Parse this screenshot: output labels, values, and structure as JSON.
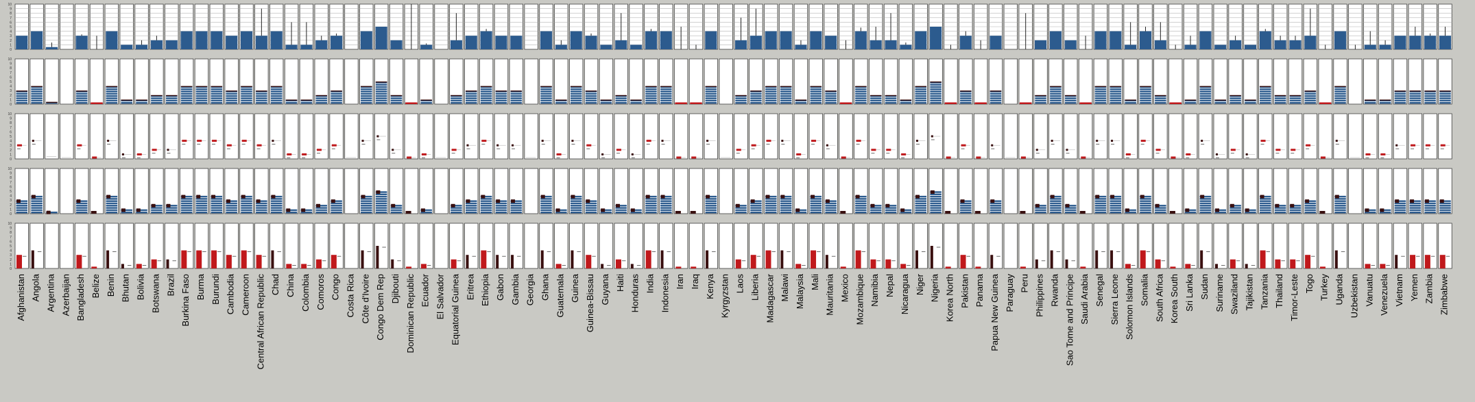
{
  "chart_data": {
    "type": "bar",
    "rows": 5,
    "ylim": [
      0,
      10
    ],
    "tick_labels": [
      "10",
      "9",
      "8",
      "7",
      "6",
      "5",
      "4",
      "3",
      "2",
      "1",
      "0"
    ],
    "colors": {
      "background": "#c9c9c4",
      "panel": "#ffffff",
      "blue": "#2c5b8e",
      "red": "#c0191c",
      "dark": "#3a1010",
      "grid": "#b5b5b5",
      "border": "#404040"
    },
    "countries": [
      {
        "name": "Afghanistan",
        "v": 3,
        "e": 0,
        "row3": "red"
      },
      {
        "name": "Angola",
        "v": 4,
        "e": 0,
        "row3": "dark"
      },
      {
        "name": "Argentina",
        "v": 0.5,
        "e": 1,
        "row3": "none"
      },
      {
        "name": "Azerbaijan",
        "v": 0,
        "e": 0,
        "row3": "none"
      },
      {
        "name": "Bangladesh",
        "v": 3,
        "e": 0.3,
        "row3": "red"
      },
      {
        "name": "Belize",
        "v": 0,
        "e": 3,
        "row3": "red"
      },
      {
        "name": "Benin",
        "v": 4,
        "e": 0,
        "row3": "dark"
      },
      {
        "name": "Bhutan",
        "v": 1,
        "e": 0,
        "row3": "dark"
      },
      {
        "name": "Bolivia",
        "v": 1,
        "e": 1,
        "row3": "red"
      },
      {
        "name": "Botswana",
        "v": 2,
        "e": 1,
        "row3": "red"
      },
      {
        "name": "Brazil",
        "v": 2,
        "e": 0,
        "row3": "dark"
      },
      {
        "name": "Burkina Faso",
        "v": 4,
        "e": 0,
        "row3": "red"
      },
      {
        "name": "Burma",
        "v": 4,
        "e": 0,
        "row3": "red"
      },
      {
        "name": "Burundi",
        "v": 4,
        "e": 0,
        "row3": "red"
      },
      {
        "name": "Cambodia",
        "v": 3,
        "e": 0,
        "row3": "red"
      },
      {
        "name": "Cameroon",
        "v": 4,
        "e": 0,
        "row3": "red"
      },
      {
        "name": "Central African Republic",
        "v": 3,
        "e": 6,
        "row3": "red"
      },
      {
        "name": "Chad",
        "v": 4,
        "e": 0,
        "row3": "dark"
      },
      {
        "name": "China",
        "v": 1,
        "e": 5,
        "row3": "red"
      },
      {
        "name": "Colombia",
        "v": 1,
        "e": 5,
        "row3": "red"
      },
      {
        "name": "Comoros",
        "v": 2,
        "e": 1,
        "row3": "red"
      },
      {
        "name": "Congo",
        "v": 3,
        "e": 0.5,
        "row3": "red"
      },
      {
        "name": "Costa Rica",
        "v": 0,
        "e": 0,
        "row3": "none"
      },
      {
        "name": "Côte d'Ivoire",
        "v": 4,
        "e": 0,
        "row3": "dark"
      },
      {
        "name": "Congo Dem Rep",
        "v": 5,
        "e": 0,
        "row3": "dark"
      },
      {
        "name": "Djibouti",
        "v": 2,
        "e": 0,
        "row3": "dark"
      },
      {
        "name": "Dominican Republic",
        "v": 0,
        "e": 10,
        "row3": "red"
      },
      {
        "name": "Ecuador",
        "v": 1,
        "e": 0.3,
        "row3": "red"
      },
      {
        "name": "El Salvador",
        "v": 0,
        "e": 0,
        "row3": "none"
      },
      {
        "name": "Equatorial Guinea",
        "v": 2,
        "e": 6,
        "row3": "red"
      },
      {
        "name": "Eritrea",
        "v": 3,
        "e": 0,
        "row3": "dark"
      },
      {
        "name": "Ethiopia",
        "v": 4,
        "e": 0.5,
        "row3": "red"
      },
      {
        "name": "Gabon",
        "v": 3,
        "e": 0,
        "row3": "dark"
      },
      {
        "name": "Gambia",
        "v": 3,
        "e": 0,
        "row3": "dark"
      },
      {
        "name": "Georgia",
        "v": 0,
        "e": 0,
        "row3": "none"
      },
      {
        "name": "Ghana",
        "v": 4,
        "e": 0,
        "row3": "dark"
      },
      {
        "name": "Guatemala",
        "v": 1,
        "e": 1,
        "row3": "red"
      },
      {
        "name": "Guinea",
        "v": 4,
        "e": 0,
        "row3": "dark"
      },
      {
        "name": "Guinea-Bissau",
        "v": 3,
        "e": 0.5,
        "row3": "red"
      },
      {
        "name": "Guyana",
        "v": 1,
        "e": 0,
        "row3": "dark"
      },
      {
        "name": "Haiti",
        "v": 2,
        "e": 6,
        "row3": "red"
      },
      {
        "name": "Honduras",
        "v": 1,
        "e": 0,
        "row3": "dark"
      },
      {
        "name": "India",
        "v": 4,
        "e": 0.5,
        "row3": "red"
      },
      {
        "name": "Indonesia",
        "v": 4,
        "e": 0,
        "row3": "dark"
      },
      {
        "name": "Iran",
        "v": 0,
        "e": 5,
        "row3": "red"
      },
      {
        "name": "Iraq",
        "v": 0,
        "e": 1,
        "row3": "red"
      },
      {
        "name": "Kenya",
        "v": 4,
        "e": 0,
        "row3": "dark"
      },
      {
        "name": "Kyrgyzstan",
        "v": 0,
        "e": 0,
        "row3": "none"
      },
      {
        "name": "Laos",
        "v": 2,
        "e": 5,
        "row3": "red"
      },
      {
        "name": "Liberia",
        "v": 3,
        "e": 6,
        "row3": "red"
      },
      {
        "name": "Madagascar",
        "v": 4,
        "e": 0,
        "row3": "red"
      },
      {
        "name": "Malawi",
        "v": 4,
        "e": 0,
        "row3": "dark"
      },
      {
        "name": "Malaysia",
        "v": 1,
        "e": 1,
        "row3": "red"
      },
      {
        "name": "Mali",
        "v": 4,
        "e": 0,
        "row3": "red"
      },
      {
        "name": "Mauritania",
        "v": 3,
        "e": 0,
        "row3": "dark"
      },
      {
        "name": "Mexico",
        "v": 0,
        "e": 2,
        "row3": "red"
      },
      {
        "name": "Mozambique",
        "v": 4,
        "e": 0.8,
        "row3": "red"
      },
      {
        "name": "Namibia",
        "v": 2,
        "e": 3,
        "row3": "red"
      },
      {
        "name": "Nepal",
        "v": 2,
        "e": 6,
        "row3": "red"
      },
      {
        "name": "Nicaragua",
        "v": 1,
        "e": 0.5,
        "row3": "red"
      },
      {
        "name": "Niger",
        "v": 4,
        "e": 0,
        "row3": "dark"
      },
      {
        "name": "Nigeria",
        "v": 5,
        "e": 0,
        "row3": "dark"
      },
      {
        "name": "Korea North",
        "v": 0,
        "e": 1,
        "row3": "red"
      },
      {
        "name": "Pakistan",
        "v": 3,
        "e": 1,
        "row3": "red"
      },
      {
        "name": "Panama",
        "v": 0,
        "e": 2,
        "row3": "red"
      },
      {
        "name": "Papua New Guinea",
        "v": 3,
        "e": 0,
        "row3": "dark"
      },
      {
        "name": "Paraguay",
        "v": 0,
        "e": 0,
        "row3": "none"
      },
      {
        "name": "Peru",
        "v": 0,
        "e": 8,
        "row3": "red"
      },
      {
        "name": "Philippines",
        "v": 2,
        "e": 0,
        "row3": "dark"
      },
      {
        "name": "Rwanda",
        "v": 4,
        "e": 0,
        "row3": "dark"
      },
      {
        "name": "Sao Tome and Principe",
        "v": 2,
        "e": 0,
        "row3": "dark"
      },
      {
        "name": "Saudi Arabia",
        "v": 0,
        "e": 3,
        "row3": "red"
      },
      {
        "name": "Senegal",
        "v": 4,
        "e": 0,
        "row3": "dark"
      },
      {
        "name": "Sierra Leone",
        "v": 4,
        "e": 0,
        "row3": "dark"
      },
      {
        "name": "Solomon Islands",
        "v": 1,
        "e": 5,
        "row3": "red"
      },
      {
        "name": "Somalia",
        "v": 4,
        "e": 1,
        "row3": "red"
      },
      {
        "name": "South Africa",
        "v": 2,
        "e": 4,
        "row3": "red"
      },
      {
        "name": "Korea South",
        "v": 0,
        "e": 1,
        "row3": "red"
      },
      {
        "name": "Sri Lanka",
        "v": 1,
        "e": 2,
        "row3": "red"
      },
      {
        "name": "Sudan",
        "v": 4,
        "e": 0,
        "row3": "dark"
      },
      {
        "name": "Suriname",
        "v": 1,
        "e": 0,
        "row3": "dark"
      },
      {
        "name": "Swaziland",
        "v": 2,
        "e": 1,
        "row3": "red"
      },
      {
        "name": "Tajikistan",
        "v": 1,
        "e": 0,
        "row3": "dark"
      },
      {
        "name": "Tanzania",
        "v": 4,
        "e": 0.5,
        "row3": "red"
      },
      {
        "name": "Thailand",
        "v": 2,
        "e": 1,
        "row3": "red"
      },
      {
        "name": "Timor-Leste",
        "v": 2,
        "e": 1,
        "row3": "red"
      },
      {
        "name": "Togo",
        "v": 3,
        "e": 6,
        "row3": "red"
      },
      {
        "name": "Turkey",
        "v": 0,
        "e": 1,
        "row3": "red"
      },
      {
        "name": "Uganda",
        "v": 4,
        "e": 0,
        "row3": "dark"
      },
      {
        "name": "Uzbekistan",
        "v": 0,
        "e": 1,
        "row3": "none"
      },
      {
        "name": "Vanuatu",
        "v": 1,
        "e": 3,
        "row3": "red"
      },
      {
        "name": "Venezuela",
        "v": 1,
        "e": 1,
        "row3": "red"
      },
      {
        "name": "Vietnam",
        "v": 3,
        "e": 0,
        "row3": "dark"
      },
      {
        "name": "Yemen",
        "v": 3,
        "e": 2,
        "row3": "red"
      },
      {
        "name": "Zambia",
        "v": 3,
        "e": 0.5,
        "row3": "red"
      },
      {
        "name": "Zimbabwe",
        "v": 3,
        "e": 2,
        "row3": "red"
      }
    ]
  }
}
